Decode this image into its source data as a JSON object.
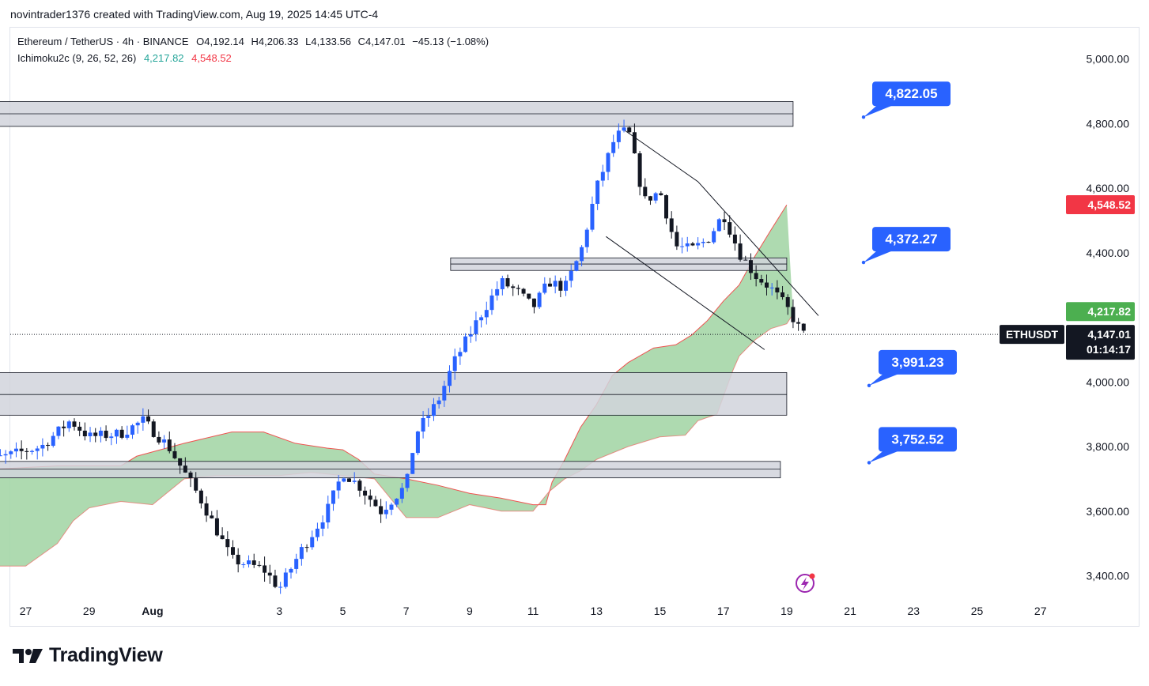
{
  "header": {
    "credit": "novintrader1376 created with TradingView.com, Aug 19, 2025 14:45 UTC-4"
  },
  "legend": {
    "symbol": "Ethereum / TetherUS · 4h · BINANCE",
    "open": "O4,192.14",
    "high": "H4,206.33",
    "low": "L4,133.56",
    "close": "C4,147.01",
    "change": "−45.13 (−1.08%)",
    "indicator": "Ichimoku2c (9, 26, 52, 26)",
    "indicator_value_1": "4,217.82",
    "indicator_value_2": "4,548.52"
  },
  "footer": {
    "brand": "TradingView"
  },
  "colors": {
    "up_candle": "#2962ff",
    "down_candle": "#131722",
    "cloud": "#a5d6a7",
    "cloud_edge": "#ef5350",
    "callout": "#2962ff",
    "zone_fill": "#d1d4dc",
    "badge_green": "#4caf50",
    "badge_red": "#f23645",
    "badge_dark": "#131722"
  },
  "chart_data": {
    "type": "candlestick",
    "symbol": "ETHUSDT",
    "timeframe": "4h",
    "ylim": [
      3330,
      5060
    ],
    "y_ticks": [
      "5,000.00",
      "4,800.00",
      "4,600.00",
      "4,400.00",
      "4,000.00",
      "3,800.00",
      "3,600.00",
      "3,400.00"
    ],
    "y_tick_values": [
      5000,
      4800,
      4600,
      4400,
      4000,
      3800,
      3600,
      3400
    ],
    "x_ticks": [
      "27",
      "29",
      "Aug",
      "3",
      "5",
      "7",
      "9",
      "11",
      "13",
      "15",
      "17",
      "19",
      "21",
      "23",
      "25",
      "27"
    ],
    "x_tick_days": [
      -5,
      -3,
      -1,
      3,
      5,
      7,
      9,
      11,
      13,
      15,
      17,
      19,
      21,
      23,
      25,
      27
    ],
    "current_price": "4,147.01",
    "current_price_value": 4147.01,
    "countdown": "01:14:17",
    "symbol_label": "ETHUSDT",
    "indicator_badges": [
      {
        "label": "4,548.52",
        "value": 4548.52,
        "color": "#f23645"
      },
      {
        "label": "4,217.82",
        "value": 4217.82,
        "color": "#4caf50"
      }
    ],
    "callouts": [
      {
        "label": "4,822.05",
        "value": 4822.05
      },
      {
        "label": "4,372.27",
        "value": 4372.27
      },
      {
        "label": "3,991.23",
        "value": 3991.23
      },
      {
        "label": "3,752.52",
        "value": 3752.52
      }
    ],
    "zones": [
      {
        "top": 4868,
        "mid": 4830,
        "bottom": 4791,
        "from_day": -6.8,
        "to_day": 19.2
      },
      {
        "top": 4384,
        "mid": 4365,
        "bottom": 4345,
        "from_day": 8.4,
        "to_day": 19.0
      },
      {
        "top": 4029,
        "mid": 3961,
        "bottom": 3897,
        "from_day": -6.8,
        "to_day": 19.0
      },
      {
        "top": 3754,
        "mid": 3730,
        "bottom": 3703,
        "from_day": -6.8,
        "to_day": 18.8
      }
    ],
    "channel": {
      "upper": [
        [
          13.9,
          4778
        ],
        [
          16.2,
          4620
        ],
        [
          20.0,
          4205
        ]
      ],
      "lower": [
        [
          13.3,
          4450
        ],
        [
          18.3,
          4100
        ]
      ]
    },
    "cloud_series": {
      "senkou_top": [
        [
          -6.8,
          3715
        ],
        [
          -6.0,
          3730
        ],
        [
          -4.0,
          3740
        ],
        [
          -2.0,
          3740
        ],
        [
          -1.5,
          3770
        ],
        [
          0.0,
          3810
        ],
        [
          1.5,
          3845
        ],
        [
          2.5,
          3845
        ],
        [
          3.5,
          3810
        ],
        [
          4.5,
          3795
        ],
        [
          5.0,
          3790
        ],
        [
          5.5,
          3760
        ],
        [
          6.0,
          3715
        ],
        [
          7.0,
          3700
        ],
        [
          8.0,
          3680
        ],
        [
          9.0,
          3655
        ],
        [
          10.0,
          3640
        ],
        [
          11.0,
          3620
        ],
        [
          11.4,
          3620
        ],
        [
          11.6,
          3690
        ],
        [
          12.0,
          3760
        ],
        [
          12.5,
          3860
        ],
        [
          13.0,
          3930
        ],
        [
          13.5,
          4020
        ],
        [
          14.0,
          4060
        ],
        [
          14.8,
          4105
        ],
        [
          15.5,
          4115
        ],
        [
          16.0,
          4145
        ],
        [
          16.5,
          4190
        ],
        [
          17.0,
          4250
        ],
        [
          17.5,
          4300
        ],
        [
          18.0,
          4390
        ],
        [
          18.5,
          4470
        ],
        [
          19.0,
          4548
        ]
      ],
      "senkou_bottom": [
        [
          -6.8,
          3330
        ],
        [
          -6.0,
          3430
        ],
        [
          -5.0,
          3430
        ],
        [
          -4.0,
          3500
        ],
        [
          -3.5,
          3570
        ],
        [
          -3.0,
          3610
        ],
        [
          -2.0,
          3630
        ],
        [
          -1.0,
          3620
        ],
        [
          0.0,
          3700
        ],
        [
          1.0,
          3710
        ],
        [
          2.0,
          3710
        ],
        [
          3.0,
          3710
        ],
        [
          4.0,
          3720
        ],
        [
          5.0,
          3710
        ],
        [
          6.0,
          3700
        ],
        [
          6.5,
          3640
        ],
        [
          7.0,
          3580
        ],
        [
          8.0,
          3580
        ],
        [
          9.0,
          3620
        ],
        [
          10.0,
          3600
        ],
        [
          11.0,
          3600
        ],
        [
          11.5,
          3660
        ],
        [
          12.0,
          3700
        ],
        [
          12.5,
          3725
        ],
        [
          13.0,
          3760
        ],
        [
          14.0,
          3800
        ],
        [
          15.0,
          3830
        ],
        [
          15.8,
          3835
        ],
        [
          16.2,
          3880
        ],
        [
          16.8,
          3900
        ],
        [
          17.3,
          4035
        ],
        [
          17.5,
          4080
        ],
        [
          18.0,
          4130
        ],
        [
          18.5,
          4165
        ],
        [
          19.0,
          4180
        ],
        [
          19.2,
          4210
        ]
      ]
    }
  }
}
